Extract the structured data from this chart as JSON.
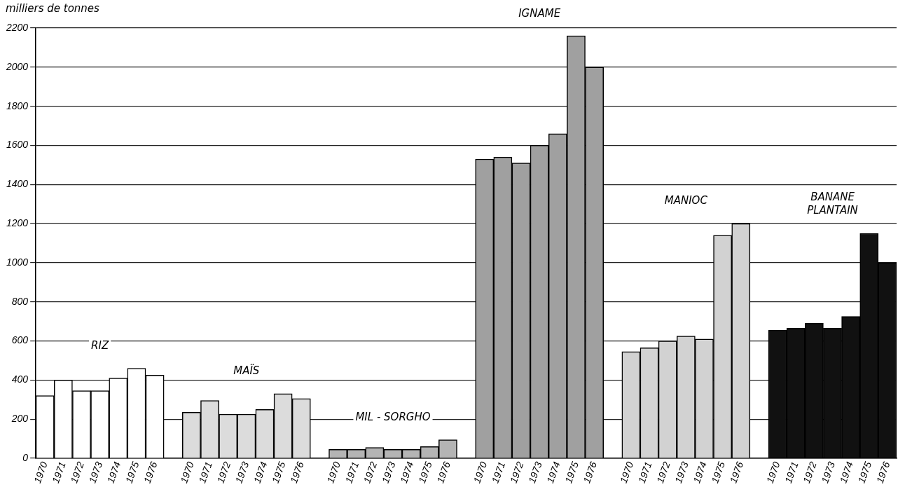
{
  "chart_data": {
    "type": "bar",
    "ylabel": "milliers de tonnes",
    "categories": [
      "1970",
      "1971",
      "1972",
      "1973",
      "1974",
      "1975",
      "1976",
      null,
      "1970",
      "1971",
      "1972",
      "1973",
      "1974",
      "1975",
      "1976",
      null,
      "1970",
      "1971",
      "1972",
      "1973",
      "1974",
      "1975",
      "1976",
      null,
      "1970",
      "1971",
      "1972",
      "1973",
      "1974",
      "1975",
      "1976",
      null,
      "1970",
      "1971",
      "1972",
      "1973",
      "1974",
      "1975",
      "1976",
      null,
      "1970",
      "1971",
      "1972",
      "1973",
      "1974",
      "1975",
      "1976"
    ],
    "series": [
      {
        "name": "RIZ",
        "color": "#ffffff",
        "values": [
          320,
          400,
          345,
          345,
          410,
          460,
          425,
          null,
          null,
          null,
          null,
          null,
          null,
          null,
          null,
          null,
          null,
          null,
          null,
          null,
          null,
          null,
          null,
          null,
          null,
          null,
          null,
          null,
          null,
          null,
          null,
          null,
          null,
          null,
          null,
          null,
          null,
          null,
          null,
          null,
          null,
          null,
          null,
          null,
          null,
          null,
          null
        ]
      },
      {
        "name": "MAÏS",
        "color": "#dcdcdc",
        "values": [
          null,
          null,
          null,
          null,
          null,
          null,
          null,
          null,
          235,
          295,
          225,
          225,
          250,
          330,
          305,
          null,
          null,
          null,
          null,
          null,
          null,
          null,
          null,
          null,
          null,
          null,
          null,
          null,
          null,
          null,
          null,
          null,
          null,
          null,
          null,
          null,
          null,
          null,
          null,
          null,
          null,
          null,
          null,
          null,
          null,
          null,
          null
        ]
      },
      {
        "name": "MIL - SORGHO",
        "color": "#b4b4b4",
        "values": [
          null,
          null,
          null,
          null,
          null,
          null,
          null,
          null,
          null,
          null,
          null,
          null,
          null,
          null,
          null,
          null,
          45,
          45,
          55,
          45,
          45,
          60,
          95,
          null,
          null,
          null,
          null,
          null,
          null,
          null,
          null,
          null,
          null,
          null,
          null,
          null,
          null,
          null,
          null,
          null,
          null,
          null,
          null,
          null,
          null,
          null,
          null
        ]
      },
      {
        "name": "IGNAME",
        "color": "#a0a0a0",
        "values": [
          null,
          null,
          null,
          null,
          null,
          null,
          null,
          null,
          null,
          null,
          null,
          null,
          null,
          null,
          null,
          null,
          null,
          null,
          null,
          null,
          null,
          null,
          null,
          null,
          1530,
          1540,
          1510,
          1600,
          1660,
          2160,
          2000,
          null,
          null,
          null,
          null,
          null,
          null,
          null,
          null,
          null,
          null,
          null,
          null,
          null,
          null,
          null,
          null
        ]
      },
      {
        "name": "MANIOC",
        "color": "#d2d2d2",
        "values": [
          null,
          null,
          null,
          null,
          null,
          null,
          null,
          null,
          null,
          null,
          null,
          null,
          null,
          null,
          null,
          null,
          null,
          null,
          null,
          null,
          null,
          null,
          null,
          null,
          null,
          null,
          null,
          null,
          null,
          null,
          null,
          null,
          545,
          565,
          600,
          625,
          610,
          1140,
          1200,
          null,
          null,
          null,
          null,
          null,
          null,
          null,
          null
        ]
      },
      {
        "name": "BANANE PLANTAIN",
        "color": "#111111",
        "values": [
          null,
          null,
          null,
          null,
          null,
          null,
          null,
          null,
          null,
          null,
          null,
          null,
          null,
          null,
          null,
          null,
          null,
          null,
          null,
          null,
          null,
          null,
          null,
          null,
          null,
          null,
          null,
          null,
          null,
          null,
          null,
          null,
          null,
          null,
          null,
          null,
          null,
          null,
          null,
          null,
          655,
          665,
          690,
          665,
          725,
          1150,
          1000
        ]
      }
    ],
    "ylim": [
      0,
      2200
    ],
    "yticks": [
      0,
      200,
      400,
      600,
      800,
      1000,
      1200,
      1400,
      1600,
      1800,
      2000,
      2200
    ],
    "grid": "y",
    "legend": false
  }
}
